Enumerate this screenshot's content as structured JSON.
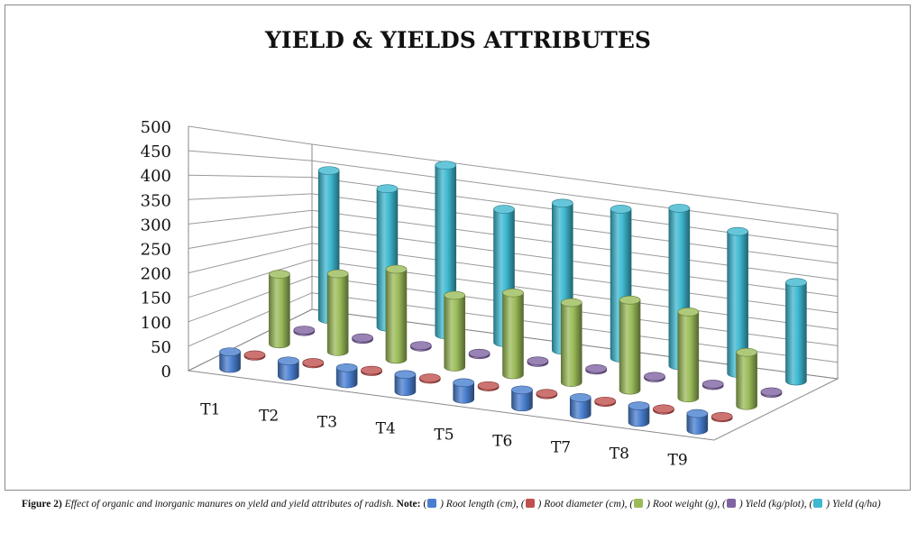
{
  "chart_data": {
    "type": "bar",
    "subtype": "3d-cylinder",
    "title": "YIELD & YIELDS ATTRIBUTES",
    "xlabel": "",
    "ylabel": "",
    "categories": [
      "T1",
      "T2",
      "T3",
      "T4",
      "T5",
      "T6",
      "T7",
      "T8",
      "T9"
    ],
    "yticks": [
      "0",
      "50",
      "100",
      "150",
      "200",
      "250",
      "300",
      "350",
      "400",
      "450",
      "500"
    ],
    "ylim": [
      0,
      500
    ],
    "grid": true,
    "series": [
      {
        "name": "Root length (cm)",
        "color": "#4a7fd0",
        "values": [
          35,
          32,
          34,
          36,
          35,
          36,
          36,
          35,
          35
        ]
      },
      {
        "name": "Root diameter (cm)",
        "color": "#c0504d",
        "values": [
          3,
          3,
          3,
          3,
          3,
          3,
          3,
          3,
          3
        ]
      },
      {
        "name": "Root weight (g)",
        "color": "#9bbb59",
        "values": [
          170,
          190,
          220,
          175,
          200,
          195,
          220,
          210,
          130
        ]
      },
      {
        "name": "Yield (kg/plot)",
        "color": "#8064a2",
        "values": [
          4,
          4,
          4,
          4,
          4,
          4,
          4,
          4,
          4
        ]
      },
      {
        "name": "Yield (q/ha)",
        "color": "#3eb8d0",
        "values": [
          430,
          400,
          490,
          385,
          425,
          430,
          455,
          410,
          285
        ]
      }
    ]
  },
  "caption": {
    "lead": "Figure 2)",
    "text": " Effect of organic and inorganic manures on yield and yield attributes of radish. ",
    "note": "Note:",
    "items": [
      {
        "color": "#4a7fd0",
        "label": " ) Root length (cm), ("
      },
      {
        "color": "#c0504d",
        "label": " ) Root diameter (cm), ("
      },
      {
        "color": "#9bbb59",
        "label": " ) Root weight (g), ("
      },
      {
        "color": "#8064a2",
        "label": " ) Yield (kg/plot), ("
      },
      {
        "color": "#3eb8d0",
        "label": " ) Yield (q/ha)"
      }
    ]
  }
}
